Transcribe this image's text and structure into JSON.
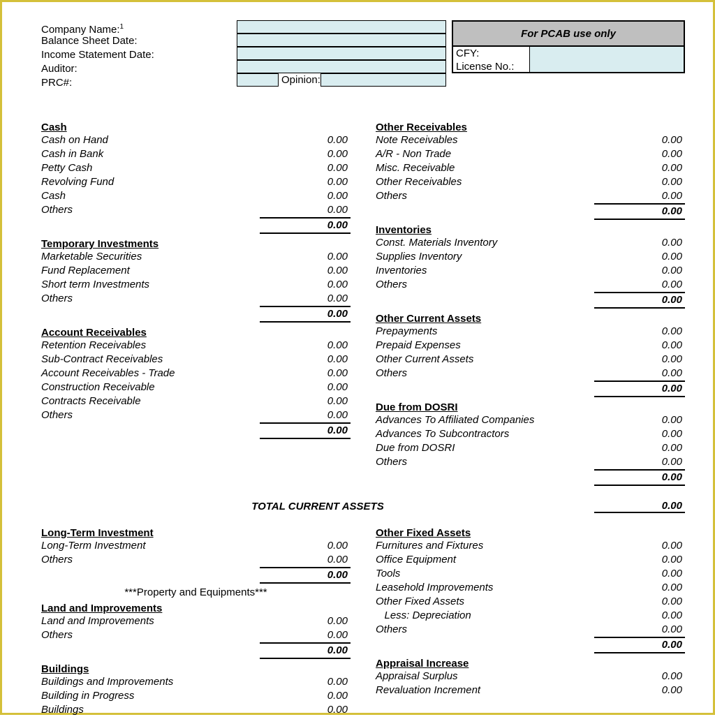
{
  "colors": {
    "input_bg": "#d9edf0",
    "pcab_bg": "#bfbfbf",
    "border": "#000000",
    "page_border": "#d4c03a"
  },
  "typography": {
    "body_font": "Arial",
    "body_size_pt": 11,
    "italic_lines": true
  },
  "header": {
    "company_label": "Company Name:",
    "sup": "1",
    "balance_label": "Balance Sheet Date:",
    "income_label": "Income Statement Date:",
    "auditor_label": "Auditor:",
    "prc_label": "PRC#:",
    "opinion_label": "Opinion:",
    "pcab_title": "For PCAB use only",
    "cfy_label": "CFY:",
    "license_label": "License No.:"
  },
  "grand_total": {
    "label": "TOTAL CURRENT ASSETS",
    "value": "0.00"
  },
  "note_property": "***Property and Equipments***",
  "left": [
    {
      "head": "Cash",
      "items": [
        {
          "l": "Cash on Hand",
          "v": "0.00"
        },
        {
          "l": "Cash in Bank",
          "v": "0.00"
        },
        {
          "l": "Petty Cash",
          "v": "0.00"
        },
        {
          "l": "Revolving Fund",
          "v": "0.00"
        },
        {
          "l": "Cash",
          "v": "0.00"
        },
        {
          "l": "Others",
          "v": "0.00"
        }
      ],
      "total": "0.00"
    },
    {
      "head": "Temporary Investments",
      "items": [
        {
          "l": "Marketable Securities",
          "v": "0.00"
        },
        {
          "l": "Fund Replacement",
          "v": "0.00"
        },
        {
          "l": "Short term Investments",
          "v": "0.00"
        },
        {
          "l": "Others",
          "v": "0.00"
        }
      ],
      "total": "0.00"
    },
    {
      "head": "Account Receivables",
      "items": [
        {
          "l": "Retention Receivables",
          "v": "0.00"
        },
        {
          "l": "Sub-Contract Receivables",
          "v": "0.00"
        },
        {
          "l": "Account Receivables - Trade",
          "v": "0.00"
        },
        {
          "l": "Construction Receivable",
          "v": "0.00"
        },
        {
          "l": "Contracts Receivable",
          "v": "0.00"
        },
        {
          "l": "Others",
          "v": "0.00"
        }
      ],
      "total": "0.00"
    }
  ],
  "right": [
    {
      "head": "Other Receivables",
      "items": [
        {
          "l": "Note Receivables",
          "v": "0.00"
        },
        {
          "l": "A/R - Non Trade",
          "v": "0.00"
        },
        {
          "l": "Misc. Receivable",
          "v": "0.00"
        },
        {
          "l": "Other Receivables",
          "v": "0.00"
        },
        {
          "l": "Others",
          "v": "0.00"
        }
      ],
      "total": "0.00"
    },
    {
      "head": "Inventories",
      "items": [
        {
          "l": "Const. Materials Inventory",
          "v": "0.00"
        },
        {
          "l": "Supplies Inventory",
          "v": "0.00"
        },
        {
          "l": "Inventories",
          "v": "0.00"
        },
        {
          "l": "Others",
          "v": "0.00"
        }
      ],
      "total": "0.00"
    },
    {
      "head": "Other Current Assets",
      "items": [
        {
          "l": "Prepayments",
          "v": "0.00"
        },
        {
          "l": "Prepaid Expenses",
          "v": "0.00"
        },
        {
          "l": "Other Current Assets",
          "v": "0.00"
        },
        {
          "l": "Others",
          "v": "0.00"
        }
      ],
      "total": "0.00"
    },
    {
      "head": "Due from DOSRI",
      "items": [
        {
          "l": "Advances To Affiliated Companies",
          "v": "0.00"
        },
        {
          "l": "Advances To Subcontractors",
          "v": "0.00"
        },
        {
          "l": "Due from DOSRI",
          "v": "0.00"
        },
        {
          "l": "Others",
          "v": "0.00"
        }
      ],
      "total": "0.00"
    }
  ],
  "left2": [
    {
      "head": "Long-Term Investment",
      "items": [
        {
          "l": "Long-Term Investment",
          "v": "0.00"
        },
        {
          "l": "Others",
          "v": "0.00"
        }
      ],
      "total": "0.00"
    },
    {
      "head": "Land and Improvements",
      "items": [
        {
          "l": "Land and Improvements",
          "v": "0.00"
        },
        {
          "l": "Others",
          "v": "0.00"
        }
      ],
      "total": "0.00"
    },
    {
      "head": "Buildings",
      "items": [
        {
          "l": "Buildings and Improvements",
          "v": "0.00"
        },
        {
          "l": "Building in Progress",
          "v": "0.00"
        },
        {
          "l": "Buildings",
          "v": "0.00"
        }
      ],
      "total": null
    }
  ],
  "right2": [
    {
      "head": "Other Fixed Assets",
      "items": [
        {
          "l": "Furnitures and Fixtures",
          "v": "0.00"
        },
        {
          "l": "Office Equipment",
          "v": "0.00"
        },
        {
          "l": "Tools",
          "v": "0.00"
        },
        {
          "l": "Leasehold Improvements",
          "v": "0.00"
        },
        {
          "l": "Other Fixed Assets",
          "v": "0.00"
        },
        {
          "l": "   Less: Depreciation",
          "v": "0.00"
        },
        {
          "l": "Others",
          "v": "0.00"
        }
      ],
      "total": "0.00"
    },
    {
      "head": "Appraisal Increase",
      "items": [
        {
          "l": "Appraisal Surplus",
          "v": "0.00"
        },
        {
          "l": "Revaluation Increment",
          "v": "0.00"
        }
      ],
      "total": null
    }
  ]
}
